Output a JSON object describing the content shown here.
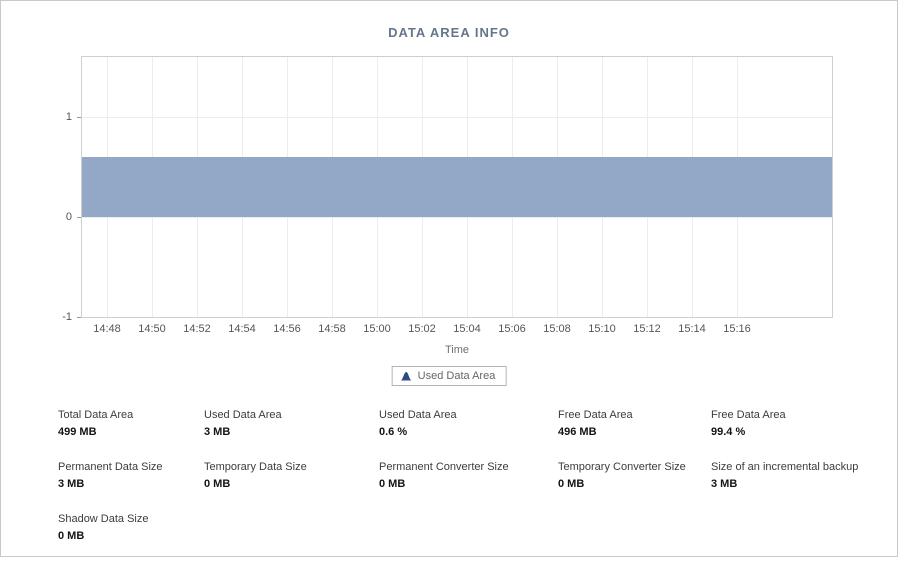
{
  "chart_data": {
    "type": "area",
    "title": "DATA AREA INFO",
    "xlabel": "Time",
    "x": [
      "14:48",
      "14:50",
      "14:52",
      "14:54",
      "14:56",
      "14:58",
      "15:00",
      "15:02",
      "15:04",
      "15:06",
      "15:08",
      "15:10",
      "15:12",
      "15:14",
      "15:16"
    ],
    "yticks": [
      1,
      0,
      -1
    ],
    "ylim": [
      -1,
      1.6
    ],
    "grid": true,
    "legend_position": "bottom",
    "series": [
      {
        "name": "Used Data Area",
        "color": "#93a8c7",
        "values": [
          0.6,
          0.6,
          0.6,
          0.6,
          0.6,
          0.6,
          0.6,
          0.6,
          0.6,
          0.6,
          0.6,
          0.6,
          0.6,
          0.6,
          0.6
        ]
      }
    ]
  },
  "legend": {
    "items": [
      {
        "label": "Used Data Area",
        "color": "#2e4d7b"
      }
    ]
  },
  "stats": {
    "rows": [
      [
        {
          "label": "Total Data Area",
          "value": "499 MB"
        },
        {
          "label": "Used Data Area",
          "value": "3 MB"
        },
        {
          "label": "Used Data Area",
          "value": "0.6 %"
        },
        {
          "label": "Free Data Area",
          "value": "496 MB"
        },
        {
          "label": "Free Data Area",
          "value": "99.4 %"
        }
      ],
      [
        {
          "label": "Permanent Data Size",
          "value": "3 MB"
        },
        {
          "label": "Temporary Data Size",
          "value": "0 MB"
        },
        {
          "label": "Permanent Converter Size",
          "value": "0 MB"
        },
        {
          "label": "Temporary Converter Size",
          "value": "0 MB"
        },
        {
          "label": "Size of an incremental backup",
          "value": "3 MB"
        }
      ],
      [
        {
          "label": "Shadow Data Size",
          "value": "0 MB"
        }
      ]
    ]
  },
  "colors": {
    "accent": "#93a8c7",
    "title": "#64778c"
  }
}
